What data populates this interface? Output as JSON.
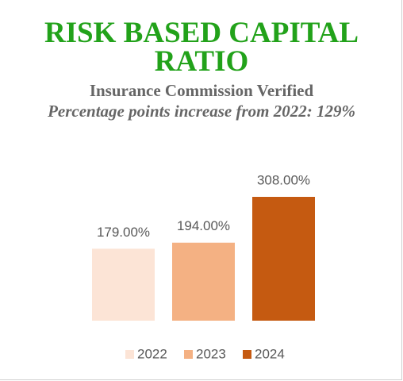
{
  "chart_data": {
    "type": "bar",
    "title": "RISK BASED CAPITAL RATIO",
    "subtitle": "Insurance Commission Verified",
    "annotation": "Percentage points increase from 2022: 129%",
    "series": [
      {
        "name": "2022",
        "color": "#fce4d6",
        "values": [
          179
        ],
        "value_labels": [
          "179.00%"
        ]
      },
      {
        "name": "2023",
        "color": "#f4b183",
        "values": [
          194
        ],
        "value_labels": [
          "194.00%"
        ]
      },
      {
        "name": "2024",
        "color": "#c55a11",
        "values": [
          308
        ],
        "value_labels": [
          "308.00%"
        ]
      }
    ],
    "legend": "bottom"
  }
}
